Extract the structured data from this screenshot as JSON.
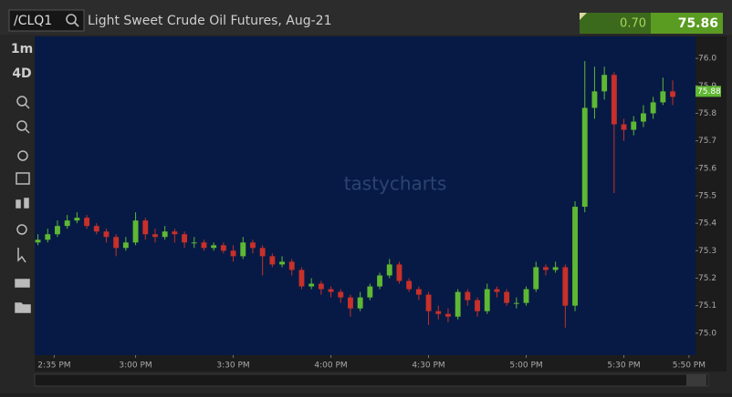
{
  "header": {
    "symbol": "/CLQ1",
    "title": "Light Sweet Crude Oil Futures, Aug-21",
    "change": "0.70",
    "last": "75.86"
  },
  "toolbar": {
    "interval": "1m",
    "range": "4D"
  },
  "chart_data": {
    "type": "candlestick",
    "watermark": "tastycharts",
    "up_color": "#5fb833",
    "down_color": "#c8302a",
    "price_marker": 75.88,
    "x": [
      870,
      873,
      876,
      879,
      882,
      885,
      888,
      891,
      894,
      897,
      900,
      903,
      906,
      909,
      912,
      915,
      918,
      921,
      924,
      927,
      930,
      933,
      936,
      939,
      942,
      945,
      948,
      951,
      954,
      957,
      960,
      963,
      966,
      969,
      972,
      975,
      978,
      981,
      984,
      987,
      990,
      993,
      996,
      999,
      1002,
      1005,
      1008,
      1011,
      1014,
      1017,
      1020,
      1023,
      1026,
      1029,
      1032,
      1035,
      1038,
      1041,
      1044,
      1047,
      1050,
      1053,
      1056,
      1059,
      1062,
      1065
    ],
    "open": [
      75.33,
      75.34,
      75.36,
      75.39,
      75.41,
      75.42,
      75.39,
      75.37,
      75.35,
      75.31,
      75.33,
      75.41,
      75.36,
      75.35,
      75.37,
      75.36,
      75.33,
      75.33,
      75.31,
      75.32,
      75.3,
      75.28,
      75.33,
      75.31,
      75.28,
      75.25,
      75.26,
      75.23,
      75.17,
      75.18,
      75.16,
      75.15,
      75.13,
      75.09,
      75.13,
      75.17,
      75.21,
      75.25,
      75.19,
      75.16,
      75.14,
      75.08,
      75.07,
      75.06,
      75.15,
      75.12,
      75.08,
      75.16,
      75.15,
      75.11,
      75.11,
      75.16,
      75.24,
      75.23,
      75.24,
      75.1,
      75.46,
      75.82,
      75.88,
      75.94,
      75.76,
      75.74,
      75.77,
      75.8,
      75.84,
      75.88
    ],
    "high": [
      75.36,
      75.38,
      75.41,
      75.43,
      75.44,
      75.43,
      75.4,
      75.38,
      75.36,
      75.35,
      75.44,
      75.42,
      75.38,
      75.39,
      75.38,
      75.37,
      75.35,
      75.34,
      75.33,
      75.33,
      75.32,
      75.35,
      75.34,
      75.32,
      75.29,
      75.28,
      75.27,
      75.24,
      75.2,
      75.19,
      75.17,
      75.16,
      75.14,
      75.15,
      75.18,
      75.22,
      75.27,
      75.26,
      75.2,
      75.17,
      75.15,
      75.1,
      75.09,
      75.16,
      75.16,
      75.13,
      75.18,
      75.17,
      75.16,
      75.13,
      75.17,
      75.26,
      75.25,
      75.26,
      75.25,
      75.48,
      75.99,
      75.97,
      75.97,
      75.95,
      75.78,
      75.79,
      75.83,
      75.86,
      75.93,
      75.92
    ],
    "low": [
      75.32,
      75.33,
      75.35,
      75.38,
      75.4,
      75.38,
      75.36,
      75.33,
      75.28,
      75.3,
      75.32,
      75.34,
      75.33,
      75.34,
      75.33,
      75.31,
      75.31,
      75.3,
      75.3,
      75.29,
      75.26,
      75.27,
      75.29,
      75.21,
      75.24,
      75.24,
      75.21,
      75.16,
      75.16,
      75.14,
      75.13,
      75.11,
      75.06,
      75.08,
      75.12,
      75.16,
      75.2,
      75.18,
      75.15,
      75.12,
      75.03,
      75.05,
      75.04,
      75.05,
      75.1,
      75.06,
      75.07,
      75.13,
      75.1,
      75.09,
      75.1,
      75.15,
      75.21,
      75.22,
      75.02,
      75.08,
      75.44,
      75.78,
      75.85,
      75.51,
      75.7,
      75.72,
      75.75,
      75.78,
      75.83,
      75.83
    ],
    "close": [
      75.34,
      75.36,
      75.39,
      75.41,
      75.42,
      75.39,
      75.37,
      75.35,
      75.31,
      75.33,
      75.41,
      75.36,
      75.35,
      75.37,
      75.36,
      75.33,
      75.33,
      75.31,
      75.32,
      75.3,
      75.28,
      75.33,
      75.31,
      75.28,
      75.25,
      75.26,
      75.23,
      75.17,
      75.18,
      75.16,
      75.15,
      75.13,
      75.09,
      75.13,
      75.17,
      75.21,
      75.25,
      75.19,
      75.16,
      75.14,
      75.08,
      75.07,
      75.06,
      75.15,
      75.12,
      75.08,
      75.16,
      75.15,
      75.11,
      75.11,
      75.16,
      75.24,
      75.23,
      75.24,
      75.1,
      75.46,
      75.82,
      75.88,
      75.94,
      75.76,
      75.74,
      75.77,
      75.8,
      75.84,
      75.88,
      75.86
    ],
    "xlim": [
      869,
      1072
    ],
    "xticks": [
      {
        "value": 875,
        "label": "2:35 PM"
      },
      {
        "value": 900,
        "label": "3:00 PM"
      },
      {
        "value": 930,
        "label": "3:30 PM"
      },
      {
        "value": 960,
        "label": "4:00 PM"
      },
      {
        "value": 990,
        "label": "4:30 PM"
      },
      {
        "value": 1020,
        "label": "5:00 PM"
      },
      {
        "value": 1050,
        "label": "5:30 PM"
      },
      {
        "value": 1070,
        "label": "5:50 PM"
      }
    ],
    "ylim": [
      74.92,
      76.08
    ],
    "yticks": [
      {
        "value": 75,
        "label": "75.0"
      },
      75.1,
      75.2,
      75.3,
      75.4,
      75.5,
      75.6,
      75.7,
      75.8,
      75.9,
      {
        "value": 76,
        "label": "76.0"
      }
    ]
  }
}
